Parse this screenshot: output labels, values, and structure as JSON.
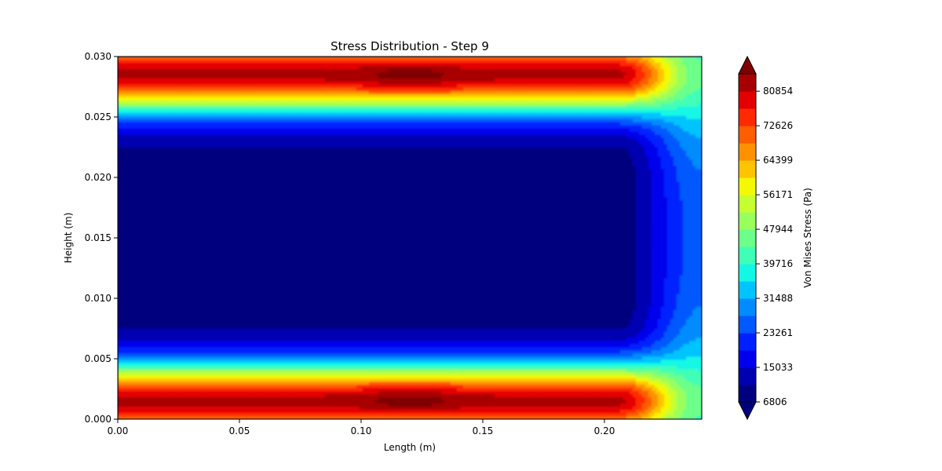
{
  "chart_data": {
    "type": "heatmap",
    "title": "Stress Distribution - Step 9",
    "xlabel": "Length (m)",
    "ylabel": "Height (m)",
    "xlim": [
      0.0,
      0.24
    ],
    "ylim": [
      0.0,
      0.03
    ],
    "x_ticks": [
      "0.00",
      "0.05",
      "0.10",
      "0.15",
      "0.20"
    ],
    "x_tick_values": [
      0.0,
      0.05,
      0.1,
      0.15,
      0.2
    ],
    "y_ticks": [
      "0.000",
      "0.005",
      "0.010",
      "0.015",
      "0.020",
      "0.025",
      "0.030"
    ],
    "y_tick_values": [
      0.0,
      0.005,
      0.01,
      0.015,
      0.02,
      0.025,
      0.03
    ],
    "grid": false,
    "colorbar": {
      "label": "Von Mises Stress (Pa)",
      "min": 6806,
      "max": 85000,
      "extend": "both",
      "tick_labels": [
        "6806",
        "15033",
        "23261",
        "31488",
        "39716",
        "47944",
        "56171",
        "64399",
        "72626",
        "80854"
      ],
      "tick_values": [
        6806,
        15033,
        23261,
        31488,
        39716,
        47944,
        56171,
        64399,
        72626,
        80854
      ],
      "levels": [
        6806,
        10920,
        15033,
        19147,
        23261,
        27374,
        31488,
        35602,
        39716,
        43830,
        47944,
        52057,
        56171,
        60285,
        64399,
        68512,
        72626,
        76740,
        80854,
        85000
      ],
      "colors": [
        "#00007f",
        "#0000b2",
        "#0000ed",
        "#0020ff",
        "#0058ff",
        "#008cff",
        "#00c4ff",
        "#12f8e5",
        "#3fffb7",
        "#6cff8a",
        "#99ff5d",
        "#c6ff30",
        "#f4f802",
        "#ffc400",
        "#ff9100",
        "#ff5d00",
        "#ff2a00",
        "#e40000",
        "#a80000",
        "#7f0000"
      ],
      "under_color": "#00007f",
      "over_color": "#7f0000"
    },
    "field_description": {
      "edge_stress_pa": 82000,
      "core_stress_pa": 8500,
      "band_centers_m": [
        0.0015,
        0.0285
      ],
      "band_falloff_m": 0.0032,
      "right_edge_drop_start_m": 0.205,
      "right_edge_stress_pa": 27000
    }
  }
}
